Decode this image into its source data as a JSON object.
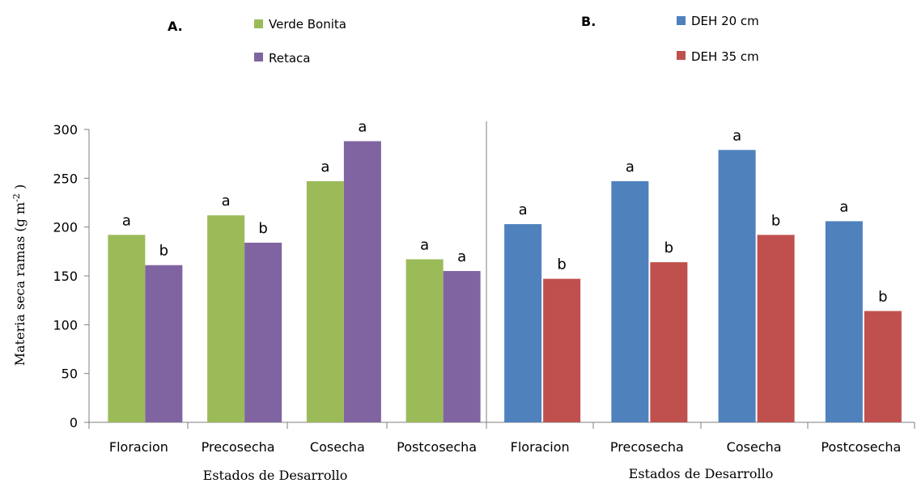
{
  "chart_data": {
    "type": "bar",
    "ylabel": "Materia seca ramas (g m",
    "ylabel_sup": "-2",
    "ylabel_tail": " )",
    "ylim": [
      0,
      300
    ],
    "yticks": [
      "0",
      "50",
      "100",
      "150",
      "200",
      "250",
      "300"
    ],
    "grid": false,
    "panels": [
      {
        "label": "A.",
        "xlabel": "Estados de Desarrollo",
        "categories": [
          "Floracion",
          "Precosecha",
          "Cosecha",
          "Postcosecha"
        ],
        "series": [
          {
            "name": "Verde Bonita",
            "color": "#9BBB59",
            "values": [
              192,
              212,
              247,
              167
            ],
            "letters": [
              "a",
              "a",
              "a",
              "a"
            ]
          },
          {
            "name": "Retaca",
            "color": "#8064A2",
            "values": [
              161,
              184,
              288,
              155
            ],
            "letters": [
              "b",
              "b",
              "a",
              "a"
            ]
          }
        ]
      },
      {
        "label": "B.",
        "xlabel": "Estados de Desarrollo",
        "categories": [
          "Floracion",
          "Precosecha",
          "Cosecha",
          "Postcosecha"
        ],
        "series": [
          {
            "name": "DEH 20 cm",
            "color": "#4F81BD",
            "values": [
              203,
              247,
              279,
              206
            ],
            "letters": [
              "a",
              "a",
              "a",
              "a"
            ]
          },
          {
            "name": "DEH 35 cm",
            "color": "#C0504D",
            "values": [
              147,
              164,
              192,
              114
            ],
            "letters": [
              "b",
              "b",
              "b",
              "b"
            ]
          }
        ]
      }
    ]
  }
}
